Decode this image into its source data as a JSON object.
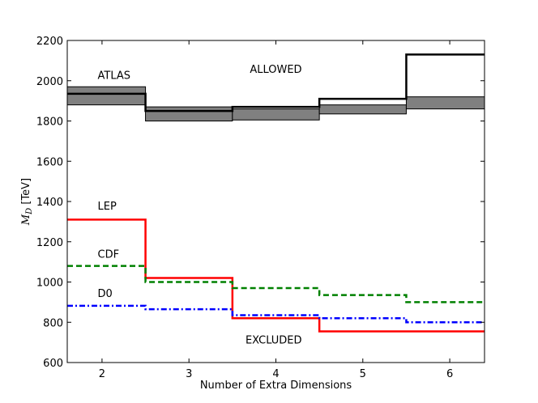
{
  "chart_data": {
    "type": "line",
    "xlabel": "Number of Extra Dimensions",
    "ylabel": "M_D [TeV]",
    "ylabel_main": "M",
    "ylabel_sub": "D",
    "ylabel_unit": " [TeV]",
    "xlim": [
      1.6,
      6.4
    ],
    "ylim": [
      600,
      2200
    ],
    "xticks": [
      2,
      3,
      4,
      5,
      6
    ],
    "yticks": [
      600,
      800,
      1000,
      1200,
      1400,
      1600,
      1800,
      2000,
      2200
    ],
    "step_edges": [
      1.6,
      2.5,
      3.5,
      4.5,
      5.5,
      6.4
    ],
    "series": [
      {
        "name": "ATLAS",
        "x": [
          2,
          3,
          4,
          5,
          6
        ],
        "values": [
          1935,
          1850,
          1870,
          1910,
          2130
        ],
        "color": "#000000",
        "style": "solid"
      },
      {
        "name": "LEP",
        "x": [
          2,
          3,
          4,
          5,
          6
        ],
        "values": [
          1310,
          1020,
          820,
          755,
          755
        ],
        "color": "#ff0000",
        "style": "solid"
      },
      {
        "name": "CDF",
        "x": [
          2,
          3,
          4,
          5,
          6
        ],
        "values": [
          1080,
          1000,
          970,
          935,
          900
        ],
        "color": "#008000",
        "style": "dashed"
      },
      {
        "name": "D0",
        "x": [
          2,
          3,
          4,
          5,
          6
        ],
        "values": [
          882,
          865,
          835,
          820,
          800
        ],
        "color": "#0000ff",
        "style": "dashdot"
      }
    ],
    "band": {
      "x": [
        2,
        3,
        4,
        5,
        6
      ],
      "low": [
        1880,
        1800,
        1805,
        1835,
        1860
      ],
      "high": [
        1970,
        1870,
        1860,
        1880,
        1920
      ],
      "color": "#808080"
    },
    "annotations": [
      {
        "text": "ATLAS",
        "x": 1.95,
        "y": 2030
      },
      {
        "text": "ALLOWED",
        "x": 3.7,
        "y": 2060
      },
      {
        "text": "LEP",
        "x": 1.95,
        "y": 1380
      },
      {
        "text": "CDF",
        "x": 1.95,
        "y": 1140
      },
      {
        "text": "D0",
        "x": 1.95,
        "y": 945
      },
      {
        "text": "EXCLUDED",
        "x": 3.65,
        "y": 715
      }
    ],
    "grid": false,
    "legend": "none"
  }
}
